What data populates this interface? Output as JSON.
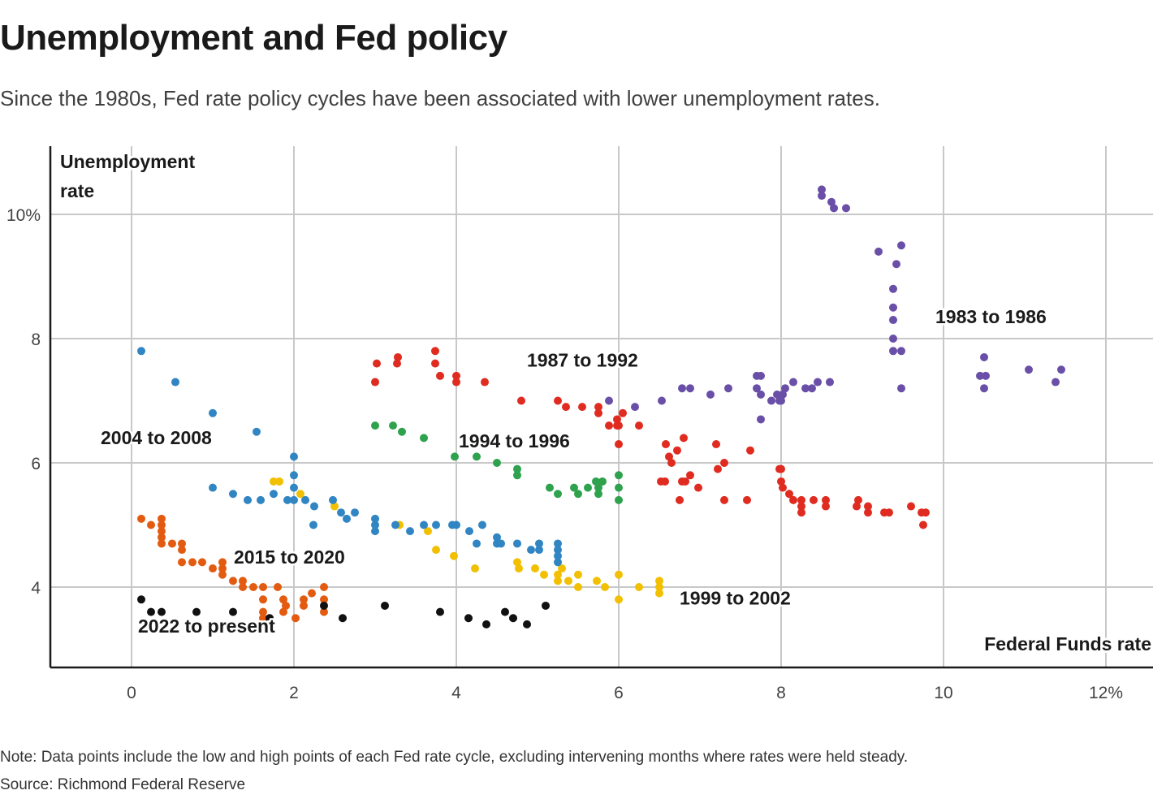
{
  "header": {
    "title": "Unemployment and Fed policy",
    "subtitle": "Since the 1980s, Fed rate policy cycles have been associated with lower unemployment rates."
  },
  "footer": {
    "note": "Note: Data points include the low and high points of each Fed rate cycle, excluding intervening months where rates were held steady.",
    "source": "Source: Richmond Federal Reserve"
  },
  "chart_data": {
    "type": "scatter",
    "title": "Unemployment and Fed policy",
    "xlabel": "Federal Funds rate",
    "ylabel_lines": [
      "Unemployment",
      "rate"
    ],
    "xlim": [
      -1,
      12.6
    ],
    "ylim": [
      2.7,
      11.1
    ],
    "xticks": [
      0,
      2,
      4,
      6,
      8,
      10,
      12
    ],
    "xtick_labels": [
      "0",
      "2",
      "4",
      "6",
      "8",
      "10",
      "12%"
    ],
    "yticks": [
      4,
      6,
      8,
      10
    ],
    "ytick_labels": [
      "4",
      "6",
      "8",
      "10%"
    ],
    "grid": true,
    "series": [
      {
        "name": "1983 to 1986",
        "color": "#6a4fa8",
        "label_at": [
          9.9,
          8.25
        ],
        "points": [
          [
            8.5,
            10.4
          ],
          [
            8.5,
            10.3
          ],
          [
            8.62,
            10.2
          ],
          [
            8.65,
            10.1
          ],
          [
            8.8,
            10.1
          ],
          [
            9.2,
            9.4
          ],
          [
            9.48,
            9.5
          ],
          [
            9.42,
            9.2
          ],
          [
            9.38,
            8.8
          ],
          [
            9.38,
            8.5
          ],
          [
            9.38,
            8.3
          ],
          [
            9.38,
            8.0
          ],
          [
            9.38,
            7.8
          ],
          [
            9.48,
            7.8
          ],
          [
            9.48,
            7.2
          ],
          [
            10.5,
            7.7
          ],
          [
            10.45,
            7.4
          ],
          [
            10.52,
            7.4
          ],
          [
            10.5,
            7.2
          ],
          [
            11.05,
            7.5
          ],
          [
            11.45,
            7.5
          ],
          [
            11.38,
            7.3
          ],
          [
            5.88,
            7.0
          ],
          [
            6.2,
            6.9
          ],
          [
            6.53,
            7.0
          ],
          [
            6.78,
            7.2
          ],
          [
            6.88,
            7.2
          ],
          [
            7.13,
            7.1
          ],
          [
            7.35,
            7.2
          ],
          [
            7.7,
            7.4
          ],
          [
            7.75,
            7.4
          ],
          [
            7.7,
            7.2
          ],
          [
            7.75,
            7.1
          ],
          [
            7.75,
            6.7
          ],
          [
            7.88,
            7.0
          ],
          [
            7.95,
            7.1
          ],
          [
            8.02,
            7.1
          ],
          [
            8.0,
            7.0
          ],
          [
            8.05,
            7.2
          ],
          [
            8.15,
            7.3
          ],
          [
            8.3,
            7.2
          ],
          [
            8.38,
            7.2
          ],
          [
            8.45,
            7.3
          ],
          [
            8.6,
            7.3
          ],
          [
            7.98,
            7.0
          ]
        ]
      },
      {
        "name": "1987 to 1992",
        "color": "#e02b20",
        "label_at": [
          4.87,
          7.55
        ],
        "points": [
          [
            3.0,
            7.3
          ],
          [
            3.02,
            7.6
          ],
          [
            3.27,
            7.6
          ],
          [
            3.28,
            7.7
          ],
          [
            3.74,
            7.8
          ],
          [
            3.74,
            7.6
          ],
          [
            3.8,
            7.4
          ],
          [
            4.0,
            7.4
          ],
          [
            4.0,
            7.3
          ],
          [
            4.35,
            7.3
          ],
          [
            4.8,
            7.0
          ],
          [
            5.25,
            7.0
          ],
          [
            5.35,
            6.9
          ],
          [
            5.55,
            6.9
          ],
          [
            5.75,
            6.9
          ],
          [
            5.75,
            6.8
          ],
          [
            5.88,
            6.6
          ],
          [
            5.98,
            6.7
          ],
          [
            5.98,
            6.6
          ],
          [
            6.05,
            6.8
          ],
          [
            6.0,
            6.6
          ],
          [
            6.0,
            6.3
          ],
          [
            6.25,
            6.6
          ],
          [
            6.58,
            6.3
          ],
          [
            6.62,
            6.1
          ],
          [
            6.65,
            6.0
          ],
          [
            6.72,
            6.2
          ],
          [
            6.8,
            6.4
          ],
          [
            7.2,
            6.3
          ],
          [
            7.22,
            5.9
          ],
          [
            7.3,
            6.0
          ],
          [
            7.62,
            6.2
          ],
          [
            6.52,
            5.7
          ],
          [
            6.57,
            5.7
          ],
          [
            6.78,
            5.7
          ],
          [
            6.82,
            5.7
          ],
          [
            6.88,
            5.8
          ],
          [
            6.75,
            5.4
          ],
          [
            6.98,
            5.6
          ],
          [
            7.3,
            5.4
          ],
          [
            7.58,
            5.4
          ],
          [
            7.98,
            5.9
          ],
          [
            8.0,
            5.9
          ],
          [
            8.0,
            5.7
          ],
          [
            8.02,
            5.6
          ],
          [
            8.1,
            5.5
          ],
          [
            8.15,
            5.4
          ],
          [
            8.25,
            5.4
          ],
          [
            8.25,
            5.3
          ],
          [
            8.25,
            5.2
          ],
          [
            8.4,
            5.4
          ],
          [
            8.55,
            5.4
          ],
          [
            8.55,
            5.3
          ],
          [
            8.93,
            5.3
          ],
          [
            8.95,
            5.4
          ],
          [
            9.07,
            5.3
          ],
          [
            9.07,
            5.2
          ],
          [
            9.27,
            5.2
          ],
          [
            9.33,
            5.2
          ],
          [
            9.6,
            5.3
          ],
          [
            9.73,
            5.2
          ],
          [
            9.78,
            5.2
          ],
          [
            9.75,
            5.0
          ]
        ]
      },
      {
        "name": "1994 to 1996",
        "color": "#2fa24e",
        "label_at": [
          4.03,
          6.25
        ],
        "points": [
          [
            3.0,
            6.6
          ],
          [
            3.22,
            6.6
          ],
          [
            3.33,
            6.5
          ],
          [
            3.6,
            6.4
          ],
          [
            3.98,
            6.1
          ],
          [
            4.25,
            6.1
          ],
          [
            4.5,
            6.0
          ],
          [
            4.75,
            5.9
          ],
          [
            4.75,
            5.8
          ],
          [
            5.15,
            5.6
          ],
          [
            5.25,
            5.5
          ],
          [
            5.45,
            5.6
          ],
          [
            5.5,
            5.5
          ],
          [
            5.62,
            5.6
          ],
          [
            5.75,
            5.6
          ],
          [
            5.72,
            5.7
          ],
          [
            5.8,
            5.7
          ],
          [
            5.75,
            5.5
          ],
          [
            6.0,
            5.8
          ],
          [
            6.0,
            5.6
          ],
          [
            6.0,
            5.4
          ]
        ]
      },
      {
        "name": "1999 to 2002",
        "color": "#f2c000",
        "label_at": [
          6.75,
          3.72
        ],
        "points": [
          [
            1.75,
            5.7
          ],
          [
            1.82,
            5.7
          ],
          [
            2.08,
            5.5
          ],
          [
            2.5,
            5.3
          ],
          [
            3.3,
            5.0
          ],
          [
            3.65,
            4.9
          ],
          [
            3.75,
            4.6
          ],
          [
            3.97,
            4.5
          ],
          [
            4.23,
            4.3
          ],
          [
            4.75,
            4.4
          ],
          [
            4.77,
            4.3
          ],
          [
            4.97,
            4.3
          ],
          [
            5.08,
            4.2
          ],
          [
            5.25,
            4.2
          ],
          [
            5.3,
            4.3
          ],
          [
            5.25,
            4.1
          ],
          [
            5.38,
            4.1
          ],
          [
            5.5,
            4.0
          ],
          [
            5.5,
            4.2
          ],
          [
            5.73,
            4.1
          ],
          [
            5.83,
            4.0
          ],
          [
            6.0,
            4.2
          ],
          [
            6.0,
            3.8
          ],
          [
            6.25,
            4.0
          ],
          [
            6.5,
            4.1
          ],
          [
            6.5,
            4.0
          ],
          [
            6.5,
            3.9
          ]
        ]
      },
      {
        "name": "2004 to 2008",
        "color": "#3185c3",
        "label_at": [
          -0.38,
          6.3
        ],
        "points": [
          [
            0.12,
            7.8
          ],
          [
            0.54,
            7.3
          ],
          [
            1.0,
            6.8
          ],
          [
            1.54,
            6.5
          ],
          [
            2.0,
            6.1
          ],
          [
            2.0,
            5.8
          ],
          [
            2.0,
            5.6
          ],
          [
            1.0,
            5.6
          ],
          [
            1.25,
            5.5
          ],
          [
            1.43,
            5.4
          ],
          [
            1.59,
            5.4
          ],
          [
            1.75,
            5.5
          ],
          [
            1.92,
            5.4
          ],
          [
            2.0,
            5.4
          ],
          [
            2.14,
            5.4
          ],
          [
            2.25,
            5.3
          ],
          [
            2.48,
            5.4
          ],
          [
            2.58,
            5.2
          ],
          [
            2.65,
            5.1
          ],
          [
            2.75,
            5.2
          ],
          [
            2.24,
            5.0
          ],
          [
            3.0,
            5.1
          ],
          [
            3.0,
            5.0
          ],
          [
            3.0,
            4.9
          ],
          [
            3.25,
            5.0
          ],
          [
            3.43,
            4.9
          ],
          [
            3.6,
            5.0
          ],
          [
            3.75,
            5.0
          ],
          [
            3.95,
            5.0
          ],
          [
            4.0,
            5.0
          ],
          [
            4.16,
            4.9
          ],
          [
            4.32,
            5.0
          ],
          [
            4.25,
            4.7
          ],
          [
            4.5,
            4.8
          ],
          [
            4.5,
            4.7
          ],
          [
            4.55,
            4.7
          ],
          [
            4.75,
            4.7
          ],
          [
            4.92,
            4.6
          ],
          [
            5.02,
            4.7
          ],
          [
            5.02,
            4.6
          ],
          [
            5.25,
            4.7
          ],
          [
            5.25,
            4.6
          ],
          [
            5.25,
            4.5
          ],
          [
            5.25,
            4.4
          ]
        ]
      },
      {
        "name": "2015 to 2020",
        "color": "#e35b10",
        "label_at": [
          1.26,
          4.38
        ],
        "points": [
          [
            0.12,
            5.1
          ],
          [
            0.24,
            5.0
          ],
          [
            0.37,
            5.1
          ],
          [
            0.37,
            5.0
          ],
          [
            0.37,
            4.9
          ],
          [
            0.37,
            4.8
          ],
          [
            0.37,
            4.7
          ],
          [
            0.5,
            4.7
          ],
          [
            0.62,
            4.7
          ],
          [
            0.62,
            4.6
          ],
          [
            0.62,
            4.4
          ],
          [
            0.75,
            4.4
          ],
          [
            0.87,
            4.4
          ],
          [
            1.0,
            4.3
          ],
          [
            1.12,
            4.4
          ],
          [
            1.12,
            4.3
          ],
          [
            1.12,
            4.2
          ],
          [
            1.25,
            4.1
          ],
          [
            1.37,
            4.1
          ],
          [
            1.37,
            4.0
          ],
          [
            1.5,
            4.0
          ],
          [
            1.62,
            4.0
          ],
          [
            1.8,
            4.0
          ],
          [
            1.62,
            3.8
          ],
          [
            1.62,
            3.6
          ],
          [
            1.62,
            3.5
          ],
          [
            1.7,
            3.5
          ],
          [
            1.87,
            3.8
          ],
          [
            1.9,
            3.7
          ],
          [
            1.87,
            3.6
          ],
          [
            2.02,
            3.5
          ],
          [
            2.12,
            3.8
          ],
          [
            2.12,
            3.7
          ],
          [
            2.22,
            3.9
          ],
          [
            2.37,
            4.0
          ],
          [
            2.37,
            3.8
          ],
          [
            2.37,
            3.6
          ]
        ]
      },
      {
        "name": "2022 to present",
        "color": "#111111",
        "label_at": [
          0.08,
          3.27
        ],
        "points": [
          [
            0.12,
            3.8
          ],
          [
            0.24,
            3.6
          ],
          [
            0.37,
            3.6
          ],
          [
            0.8,
            3.6
          ],
          [
            1.25,
            3.6
          ],
          [
            1.7,
            3.5
          ],
          [
            2.37,
            3.7
          ],
          [
            2.6,
            3.5
          ],
          [
            3.12,
            3.7
          ],
          [
            3.8,
            3.6
          ],
          [
            4.15,
            3.5
          ],
          [
            4.37,
            3.4
          ],
          [
            4.6,
            3.6
          ],
          [
            4.7,
            3.5
          ],
          [
            4.87,
            3.4
          ],
          [
            5.1,
            3.7
          ]
        ]
      }
    ]
  }
}
